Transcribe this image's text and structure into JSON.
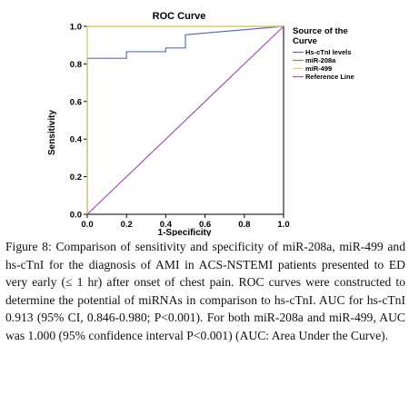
{
  "chart_data": {
    "type": "line",
    "title": "ROC Curve",
    "xlabel": "1-Specificity",
    "ylabel": "Sensitivity",
    "xlim": [
      0,
      1
    ],
    "ylim": [
      0,
      1
    ],
    "x_ticks": [
      "0.0",
      "0.2",
      "0.4",
      "0.6",
      "0.8",
      "1.0"
    ],
    "y_ticks": [
      "0.0",
      "0.2",
      "0.4",
      "0.6",
      "0.8",
      "1.0"
    ],
    "legend_title": "Source of the Curve",
    "legend_position": "right",
    "series": [
      {
        "name": "Hs-cTnI levels",
        "color": "#5b6cc8",
        "x": [
          0.0,
          0.0,
          0.2,
          0.2,
          0.4,
          0.4,
          0.5,
          0.5,
          1.0
        ],
        "y": [
          0.0,
          0.83,
          0.83,
          0.865,
          0.865,
          0.885,
          0.885,
          0.955,
          1.0
        ]
      },
      {
        "name": "miR-208a",
        "color": "#5aa84a",
        "x": [
          0.0,
          0.0,
          1.0
        ],
        "y": [
          0.0,
          1.0,
          1.0
        ]
      },
      {
        "name": "miR-499",
        "color": "#e3d26b",
        "x": [
          0.0,
          0.0,
          1.0
        ],
        "y": [
          0.0,
          1.0,
          1.0
        ]
      },
      {
        "name": "Reference Line",
        "color": "#a44fb4",
        "x": [
          0.0,
          1.0
        ],
        "y": [
          0.0,
          1.0
        ]
      }
    ]
  },
  "caption": {
    "label": "Figure 8:",
    "text": "Comparison of sensitivity and specificity of miR-208a, miR-499 and hs-cTnI for the diagnosis of AMI in ACS-NSTEMI patients presented to ED very early (≤ 1 hr) after onset of chest pain. ROC curves were constructed to determine the potential of miRNAs in comparison to hs-cTnI. AUC for hs-cTnI 0.913 (95% CI, 0.846-0.980; P<0.001). For both miR-208a and miR-499, AUC was 1.000 (95% confidence interval P<0.001) (AUC: Area Under the Curve)."
  }
}
